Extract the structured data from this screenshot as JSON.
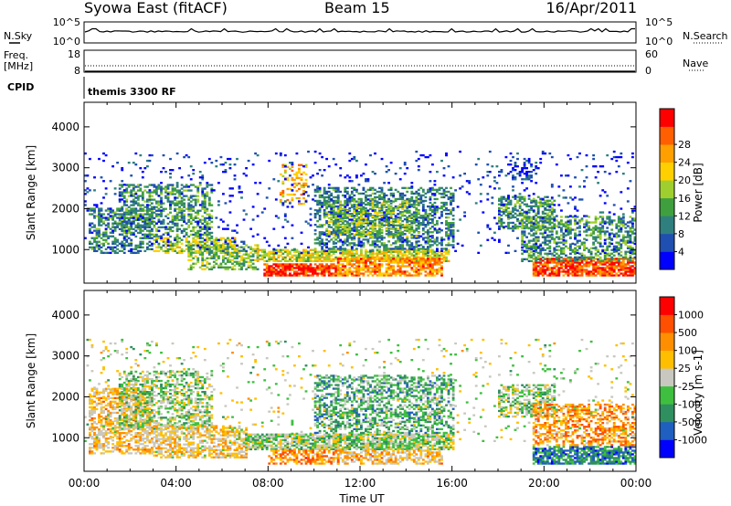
{
  "header": {
    "station": "Syowa East (fitACF)",
    "beam": "Beam 15",
    "date": "16/Apr/2011"
  },
  "noise_panel": {
    "left_label": "N.Sky",
    "left_ticks": [
      "10^5",
      "10^0"
    ],
    "right_label": "N.Search",
    "right_ticks": [
      "10^5",
      "10^0"
    ]
  },
  "freq_panel": {
    "left_label_line1": "Freq.",
    "left_label_line2": "[MHz]",
    "left_ticks": [
      "18",
      "8"
    ],
    "right_label": "Nave",
    "right_ticks": [
      "60",
      "0"
    ]
  },
  "cpid": {
    "label": "CPID",
    "value": "themis 3300 RF"
  },
  "chart_data": [
    {
      "type": "heatmap",
      "quantity": "Power",
      "ylabel": "Slant Range [km]",
      "xlabel": "",
      "x_ticks": [
        "00:00",
        "04:00",
        "08:00",
        "12:00",
        "16:00",
        "20:00",
        "00:00"
      ],
      "x_range_hours": [
        0,
        24
      ],
      "y_ticks": [
        1000,
        2000,
        3000,
        4000
      ],
      "ylim": [
        180,
        4600
      ],
      "colorbar": {
        "label": "Power [dB]",
        "ticks": [
          "4",
          "8",
          "12",
          "16",
          "20",
          "24",
          "28"
        ],
        "colors": [
          "#0000ff",
          "#1f4fb0",
          "#2f7f7f",
          "#3f9f3f",
          "#9fcf2f",
          "#ffcf00",
          "#ff9f00",
          "#ff5f00",
          "#ff0000"
        ]
      },
      "regions": [
        {
          "t0": 0.2,
          "t1": 3.0,
          "r0": 900,
          "r1": 2000,
          "level": 0.3,
          "density": 0.45
        },
        {
          "t0": 1.5,
          "t1": 5.5,
          "r0": 1300,
          "r1": 2600,
          "level": 0.35,
          "density": 0.5
        },
        {
          "t0": 3.0,
          "t1": 6.5,
          "r0": 900,
          "r1": 1300,
          "level": 0.5,
          "density": 0.6
        },
        {
          "t0": 4.5,
          "t1": 7.5,
          "r0": 500,
          "r1": 1100,
          "level": 0.45,
          "density": 0.55
        },
        {
          "t0": 7.5,
          "t1": 15.8,
          "r0": 700,
          "r1": 1000,
          "level": 0.55,
          "density": 0.75
        },
        {
          "t0": 7.8,
          "t1": 11.0,
          "r0": 350,
          "r1": 650,
          "level": 0.9,
          "density": 0.85
        },
        {
          "t0": 11.0,
          "t1": 15.5,
          "r0": 350,
          "r1": 800,
          "level": 0.75,
          "density": 0.7
        },
        {
          "t0": 10.0,
          "t1": 16.0,
          "r0": 1000,
          "r1": 2500,
          "level": 0.3,
          "density": 0.5
        },
        {
          "t0": 10.5,
          "t1": 14.5,
          "r0": 1300,
          "r1": 2200,
          "level": 0.45,
          "density": 0.45
        },
        {
          "t0": 8.5,
          "t1": 9.6,
          "r0": 2100,
          "r1": 3100,
          "level": 0.65,
          "density": 0.3
        },
        {
          "t0": 18.0,
          "t1": 20.5,
          "r0": 1500,
          "r1": 2300,
          "level": 0.35,
          "density": 0.55
        },
        {
          "t0": 18.5,
          "t1": 19.7,
          "r0": 2700,
          "r1": 3200,
          "level": 0.15,
          "density": 0.35
        },
        {
          "t0": 19.5,
          "t1": 24.0,
          "r0": 350,
          "r1": 800,
          "level": 0.85,
          "density": 0.8
        },
        {
          "t0": 19.0,
          "t1": 24.0,
          "r0": 700,
          "r1": 1800,
          "level": 0.35,
          "density": 0.5
        },
        {
          "t0": 0.0,
          "t1": 24.0,
          "r0": 900,
          "r1": 3400,
          "level": 0.1,
          "density": 0.06
        }
      ]
    },
    {
      "type": "heatmap",
      "quantity": "Velocity",
      "ylabel": "Slant Range [km]",
      "xlabel": "Time UT",
      "x_ticks": [
        "00:00",
        "04:00",
        "08:00",
        "12:00",
        "16:00",
        "20:00",
        "00:00"
      ],
      "x_range_hours": [
        0,
        24
      ],
      "y_ticks": [
        1000,
        2000,
        3000,
        4000
      ],
      "ylim": [
        180,
        4600
      ],
      "colorbar": {
        "label": "Velocity [m s-1]",
        "ticks": [
          "1000",
          "500",
          "100",
          "25",
          "-25",
          "-100",
          "-500",
          "-1000"
        ],
        "colors": [
          "#0000ff",
          "#1f5fbf",
          "#2f8f5f",
          "#3fbf3f",
          "#c8c8c0",
          "#ffbf00",
          "#ff8f00",
          "#ff4f00",
          "#ff0000"
        ]
      },
      "regions": [
        {
          "t0": 0.2,
          "t1": 3.0,
          "r0": 600,
          "r1": 2200,
          "level": 0.62,
          "density": 0.55
        },
        {
          "t0": 1.5,
          "t1": 5.5,
          "r0": 1200,
          "r1": 2600,
          "level": 0.45,
          "density": 0.5
        },
        {
          "t0": 3.0,
          "t1": 7.0,
          "r0": 500,
          "r1": 1300,
          "level": 0.6,
          "density": 0.6
        },
        {
          "t0": 7.0,
          "t1": 16.0,
          "r0": 700,
          "r1": 1100,
          "level": 0.45,
          "density": 0.8
        },
        {
          "t0": 8.0,
          "t1": 11.0,
          "r0": 350,
          "r1": 700,
          "level": 0.72,
          "density": 0.6
        },
        {
          "t0": 11.0,
          "t1": 15.5,
          "r0": 350,
          "r1": 700,
          "level": 0.62,
          "density": 0.6
        },
        {
          "t0": 10.0,
          "t1": 16.0,
          "r0": 1100,
          "r1": 2500,
          "level": 0.35,
          "density": 0.5
        },
        {
          "t0": 18.0,
          "t1": 20.5,
          "r0": 1500,
          "r1": 2300,
          "level": 0.45,
          "density": 0.55
        },
        {
          "t0": 19.5,
          "t1": 24.0,
          "r0": 350,
          "r1": 800,
          "level": 0.25,
          "density": 0.75
        },
        {
          "t0": 19.5,
          "t1": 24.0,
          "r0": 800,
          "r1": 1800,
          "level": 0.7,
          "density": 0.5
        },
        {
          "t0": 0.0,
          "t1": 24.0,
          "r0": 900,
          "r1": 3400,
          "level": 0.5,
          "density": 0.05
        }
      ]
    }
  ]
}
